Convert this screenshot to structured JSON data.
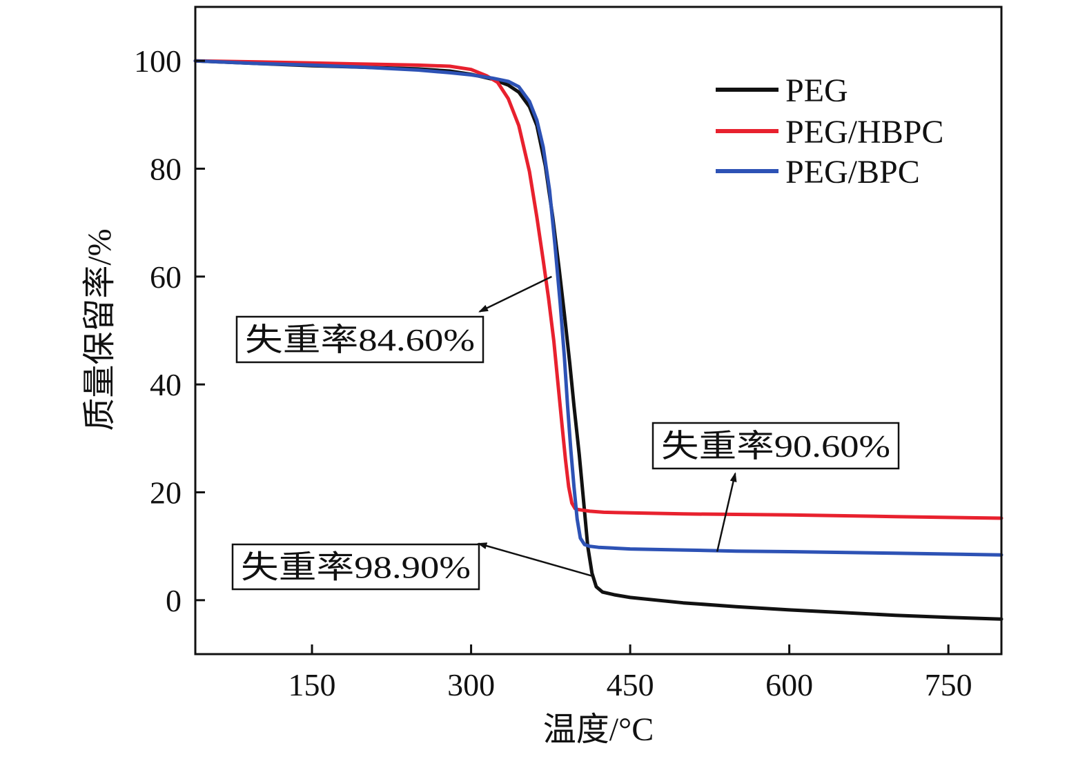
{
  "chart_data": {
    "type": "line",
    "xlabel": "温度/°C",
    "ylabel": "质量保留率/%",
    "xlim": [
      40,
      800
    ],
    "ylim": [
      -10,
      110
    ],
    "xticks": [
      150,
      300,
      450,
      600,
      750
    ],
    "yticks": [
      0,
      20,
      40,
      60,
      80,
      100
    ],
    "grid": false,
    "legend_position": "top-right",
    "series": [
      {
        "name": "PEG",
        "color": "#111111",
        "x": [
          40,
          100,
          150,
          200,
          250,
          280,
          300,
          320,
          335,
          345,
          355,
          362,
          370,
          377,
          383,
          388,
          393,
          397,
          402,
          406,
          410,
          414,
          418,
          424,
          435,
          450,
          475,
          500,
          550,
          600,
          650,
          700,
          750,
          800
        ],
        "y": [
          100,
          99.5,
          99.1,
          98.8,
          98.5,
          98.1,
          97.5,
          96.6,
          95.5,
          94.2,
          91.5,
          88.0,
          80.5,
          71.0,
          61.5,
          53.0,
          44.0,
          36.0,
          27.0,
          18.5,
          10.0,
          5.0,
          2.5,
          1.5,
          1.0,
          0.5,
          0.0,
          -0.5,
          -1.2,
          -1.8,
          -2.3,
          -2.8,
          -3.2,
          -3.5
        ]
      },
      {
        "name": "PEG/HBPC",
        "color": "#e8212e",
        "x": [
          40,
          100,
          150,
          200,
          250,
          280,
          300,
          315,
          325,
          335,
          345,
          355,
          362,
          368,
          373,
          378,
          382,
          386,
          389,
          392,
          395,
          398,
          401,
          405,
          412,
          425,
          450,
          500,
          600,
          700,
          800
        ],
        "y": [
          100,
          99.8,
          99.6,
          99.4,
          99.2,
          99.0,
          98.4,
          97.2,
          96.0,
          93.0,
          88.0,
          79.5,
          71.0,
          63.0,
          56.0,
          48.0,
          40.0,
          32.0,
          26.0,
          21.0,
          18.0,
          17.0,
          16.8,
          16.7,
          16.5,
          16.3,
          16.2,
          16.0,
          15.8,
          15.5,
          15.2
        ]
      },
      {
        "name": "PEG/BPC",
        "color": "#2d52b5",
        "x": [
          40,
          100,
          150,
          200,
          250,
          280,
          300,
          320,
          335,
          345,
          355,
          362,
          368,
          374,
          379,
          384,
          388,
          391,
          394,
          397,
          400,
          403,
          407,
          412,
          420,
          430,
          450,
          500,
          550,
          600,
          700,
          800
        ],
        "y": [
          100,
          99.5,
          99.2,
          98.8,
          98.3,
          97.8,
          97.4,
          96.8,
          96.2,
          95.2,
          92.5,
          89.0,
          84.0,
          76.0,
          66.0,
          55.0,
          45.0,
          36.0,
          28.0,
          21.0,
          15.0,
          11.5,
          10.3,
          10.0,
          9.8,
          9.7,
          9.5,
          9.3,
          9.1,
          9.0,
          8.7,
          8.4
        ]
      }
    ],
    "annotations": [
      {
        "text": "失重率84.60%",
        "point_x": 376,
        "point_y": 60,
        "tip_x": 308,
        "tip_y": 53.5
      },
      {
        "text": "失重率90.60%",
        "point_x": 532,
        "point_y": 9,
        "tip_x": 549,
        "tip_y": 23.5
      },
      {
        "text": "失重率98.90%",
        "point_x": 414,
        "point_y": 4.5,
        "tip_x": 307,
        "tip_y": 10.5
      }
    ]
  }
}
